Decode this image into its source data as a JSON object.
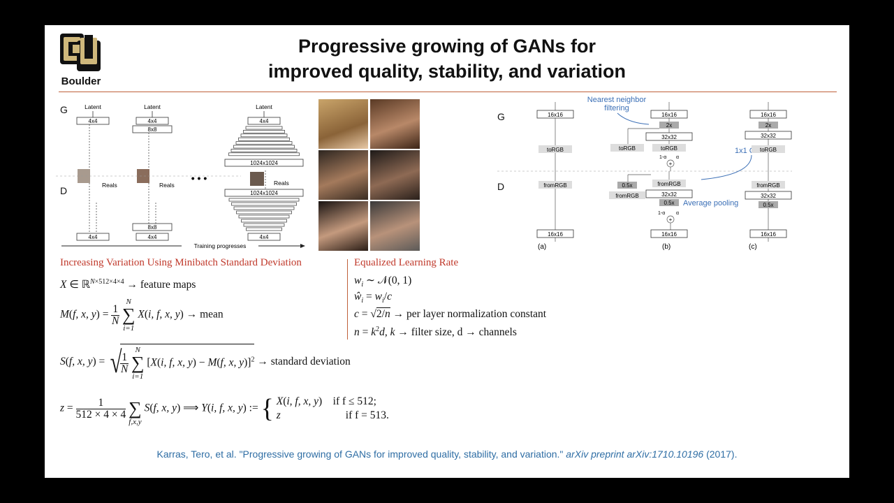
{
  "slide": {
    "logo_text": "Boulder",
    "logo_letters": "CU",
    "title_line1": "Progressive growing of GANs for",
    "title_line2": "improved quality, stability, and variation"
  },
  "fig_left": {
    "g_label": "G",
    "d_label": "D",
    "latent": "Latent",
    "b4x4": "4x4",
    "b8x8": "8x8",
    "b1024": "1024x1024",
    "reals": "Reals",
    "dots": "• • •",
    "progress": "Training progresses"
  },
  "fig_right": {
    "g_label": "G",
    "d_label": "D",
    "nn_filter_1": "Nearest neighbor",
    "nn_filter_2": "filtering",
    "conv": "1x1 Conv",
    "avg_pool": "Average pooling",
    "b16": "16x16",
    "b32": "32x32",
    "up2x": "2x",
    "torgb": "toRGB",
    "fromrgb": "fromRGB",
    "half": "0.5x",
    "one_minus_alpha": "1-α",
    "alpha": "α",
    "plus": "+",
    "cap_a": "(a)",
    "cap_b": "(b)",
    "cap_c": "(c)"
  },
  "sections": {
    "left_head": "Increasing Variation Using Minibatch Standard Deviation",
    "right_head": "Equalized Learning Rate"
  },
  "equations": {
    "x_def_tail": "→ feature maps",
    "mean_tail": "→ mean",
    "std_tail": "→ standard deviation",
    "w_init": "w",
    "w_hat": "ŵ",
    "c_tail": "→ per layer normalization constant",
    "n_tail": "→ filter size, d → channels",
    "case1_cond": "if f ≤ 512;",
    "case2_cond": "if f = 513."
  },
  "citation": {
    "main": "Karras, Tero, et al. \"Progressive growing of GANs for improved quality, stability, and variation.\"",
    "journal": "arXiv preprint arXiv:1710.10196",
    "year": "(2017)."
  },
  "colors": {
    "accent_red": "#c0392b",
    "rule": "#c0613a",
    "link_blue": "#2e6da4",
    "annot_blue": "#3b6fb6",
    "logo_gold": "#cfb87c"
  }
}
